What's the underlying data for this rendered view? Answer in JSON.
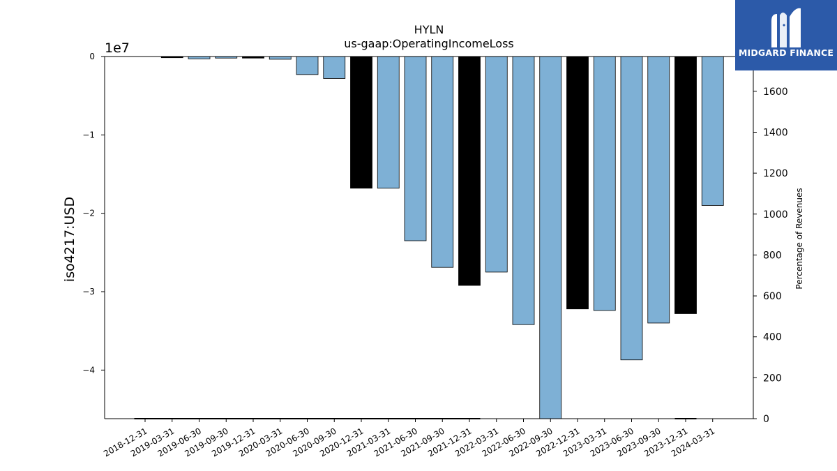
{
  "brand": {
    "name": "MIDGARD FINANCE",
    "bg_color": "#2c5aa9"
  },
  "chart_data": {
    "type": "bar",
    "title": "HYLN",
    "subtitle": "us-gaap:OperatingIncomeLoss",
    "ylabel": "iso4217:USD",
    "y_offset_label": "1e7",
    "ylabel_right": "Percentage of Revenues",
    "ylim": [
      -46200000,
      0
    ],
    "yticks": [
      0,
      -1,
      -2,
      -3,
      -4
    ],
    "ylim_right": [
      0,
      1770
    ],
    "yticks_right": [
      0,
      200,
      400,
      600,
      800,
      1000,
      1200,
      1400,
      1600
    ],
    "grid": false,
    "colors": {
      "quarterly": "#7eb0d5",
      "annual": "#000000"
    },
    "categories": [
      "2018-12-31",
      "2019-03-31",
      "2019-06-30",
      "2019-09-30",
      "2019-12-31",
      "2020-03-31",
      "2020-06-30",
      "2020-09-30",
      "2020-12-31",
      "2021-03-31",
      "2021-06-30",
      "2021-09-30",
      "2021-12-31",
      "2022-03-31",
      "2022-06-30",
      "2022-09-30",
      "2022-12-31",
      "2023-03-31",
      "2023-06-30",
      "2023-09-30",
      "2023-12-31",
      "2024-03-31"
    ],
    "values": [
      0,
      -150000,
      -300000,
      -200000,
      -200000,
      -350000,
      -2300000,
      -2800000,
      -16800000,
      -16800000,
      -23500000,
      -26900000,
      -29200000,
      -27500000,
      -34200000,
      -46200000,
      -32200000,
      -32400000,
      -38700000,
      -34000000,
      -32800000,
      -19000000
    ],
    "period_type": [
      "",
      "annual",
      "quarterly",
      "quarterly",
      "annual",
      "quarterly",
      "quarterly",
      "quarterly",
      "annual",
      "quarterly",
      "quarterly",
      "quarterly",
      "annual",
      "quarterly",
      "quarterly",
      "quarterly",
      "annual",
      "quarterly",
      "quarterly",
      "quarterly",
      "annual",
      "quarterly"
    ],
    "pct_of_revenues": [
      0,
      0,
      0,
      0,
      0,
      0,
      0,
      0,
      0,
      0,
      0,
      0,
      0,
      null,
      null,
      null,
      null,
      null,
      null,
      null,
      0,
      null
    ]
  }
}
